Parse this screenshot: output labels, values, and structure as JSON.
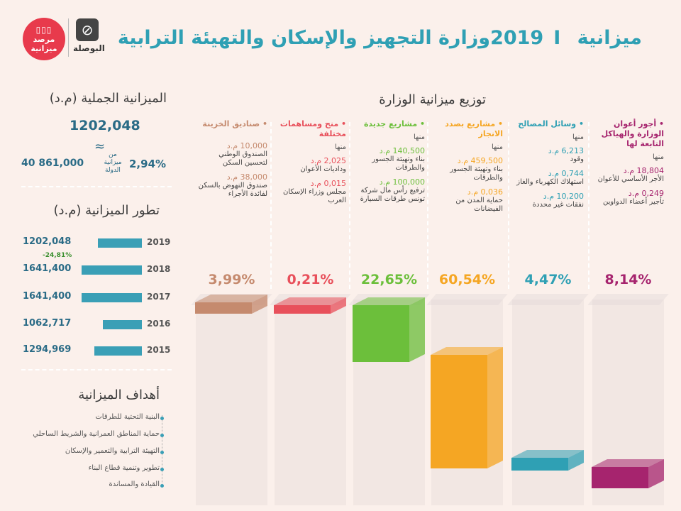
{
  "title": {
    "main": "وزارة التجهيز والإسكان والتهيئة الترابية",
    "budget": "ميزانية 2019",
    "sep": "I"
  },
  "logos": {
    "left_text": "مرصد ميزانية",
    "left_bars": "▯▯▯",
    "right_text": "البوصلة",
    "right_icon": "⊘"
  },
  "total": {
    "title": "الميزانية الجملية (م.د)",
    "value": "1202,048",
    "approx": "≈",
    "state_budget": "40 861,000",
    "pct": "2,94%",
    "pct_label": "من ميزانية الدولة"
  },
  "evolution": {
    "title": "تطور الميزانية (م.د)",
    "change_label": "-24,81%"
  },
  "distribution_title": "توزيع ميزانية الوزارة",
  "goals": {
    "title": "أهداف الميزانية",
    "items": [
      "البنية التحتية للطرقات",
      "حماية المناطق العمرانية والشريط الساحلي",
      "التهيئة الترابية والتعمير والإسكان",
      "تطوير وتنمية قطاع البناء",
      "القيادة والمساندة"
    ]
  },
  "columns": [
    {
      "head": "أجور أعوان الوزارة والهياكل التابعة لها",
      "color": "#a6246e",
      "mnha": "منها",
      "items": [
        {
          "amt": "18,804 م.د",
          "lbl": "الأجر الأساسي للأعوان"
        },
        {
          "amt": "0,249 م.د",
          "lbl": "تأجير أعضاء الدواوين"
        }
      ],
      "pct": "8,14%"
    },
    {
      "head": "وسائل المصالح",
      "color": "#2fa0b4",
      "mnha": "منها",
      "items": [
        {
          "amt": "6,213 م.د",
          "lbl": "وقود"
        },
        {
          "amt": "0,744 م.د",
          "lbl": "استهلاك الكهرباء والغاز"
        },
        {
          "amt": "10,200 م.د",
          "lbl": "نفقات غير محددة"
        }
      ],
      "pct": "4,47%"
    },
    {
      "head": "مشاريع بصدد الانجاز",
      "color": "#f5a623",
      "mnha": "منها",
      "items": [
        {
          "amt": "459,500 م.د",
          "lbl": "بناء وتهيئة الجسور والطرقات"
        },
        {
          "amt": "0,036 م.د",
          "lbl": "حماية المدن من الفيضانات"
        }
      ],
      "pct": "60,54%"
    },
    {
      "head": "مشاريع جديدة",
      "color": "#6cbf3b",
      "mnha": "منها",
      "items": [
        {
          "amt": "140,500 م.د",
          "lbl": "بناء وتهيئة الجسور والطرقات"
        },
        {
          "amt": "100,000 م.د",
          "lbl": "ترفيع رأس مال شركة تونس طرقات السيارة"
        }
      ],
      "pct": "22,65%"
    },
    {
      "head": "منح ومساهمات مختلفة",
      "color": "#e8505b",
      "mnha": "منها",
      "items": [
        {
          "amt": "2,025 م.د",
          "lbl": "وداديات الأعوان"
        },
        {
          "amt": "0,015 م.د",
          "lbl": "مجلس وزراء الإسكان العرب"
        }
      ],
      "pct": "0,21%"
    },
    {
      "head": "صناديق الخزينة",
      "color": "#c58a6e",
      "mnha": "",
      "items": [
        {
          "amt": "10,000 م.د",
          "lbl": "الصندوق الوطني لتحسين السكن"
        },
        {
          "amt": "38,000 م.د",
          "lbl": "صندوق النهوض بالسكن لفائدة الأجراء"
        }
      ],
      "pct": "3,99%"
    }
  ],
  "chart_data": [
    {
      "type": "bar",
      "title": "تطور الميزانية (م.د)",
      "categories": [
        "2019",
        "2018",
        "2017",
        "2016",
        "2015"
      ],
      "values": [
        1202.048,
        1641.4,
        1641.4,
        1062.717,
        1294.969
      ],
      "value_labels": [
        "1202,048",
        "1641,400",
        "1641,400",
        "1062,717",
        "1294,969"
      ],
      "annotations": [
        "-24,81%"
      ]
    },
    {
      "type": "bar",
      "title": "توزيع ميزانية الوزارة",
      "categories": [
        "أجور أعوان الوزارة والهياكل التابعة لها",
        "وسائل المصالح",
        "مشاريع بصدد الانجاز",
        "مشاريع جديدة",
        "منح ومساهمات مختلفة",
        "صناديق الخزينة"
      ],
      "values": [
        8.14,
        4.47,
        60.54,
        22.65,
        0.21,
        3.99
      ],
      "colors": [
        "#a6246e",
        "#2fa0b4",
        "#f5a623",
        "#6cbf3b",
        "#e8505b",
        "#c58a6e"
      ]
    }
  ]
}
